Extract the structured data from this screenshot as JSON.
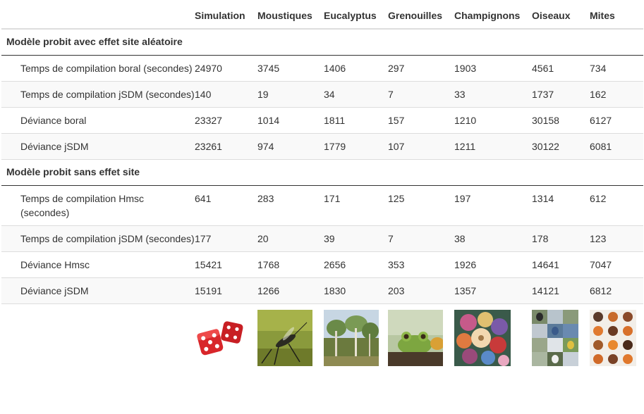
{
  "table": {
    "headers": [
      "",
      "Simulation",
      "Moustiques",
      "Eucalyptus",
      "Grenouilles",
      "Champignons",
      "Oiseaux",
      "Mites"
    ],
    "section1": {
      "title": "Modèle probit avec effet site aléatoire",
      "rows": [
        {
          "label": "Temps de compilation boral (secondes)",
          "values": [
            "24970",
            "3745",
            "1406",
            "297",
            "1903",
            "4561",
            "734"
          ]
        },
        {
          "label": "Temps de compilation jSDM (secondes)",
          "values": [
            "140",
            "19",
            "34",
            "7",
            "33",
            "1737",
            "162"
          ]
        },
        {
          "label": "Déviance boral",
          "values": [
            "23327",
            "1014",
            "1811",
            "157",
            "1210",
            "30158",
            "6127"
          ]
        },
        {
          "label": "Déviance jSDM",
          "values": [
            "23261",
            "974",
            "1779",
            "107",
            "1211",
            "30122",
            "6081"
          ]
        }
      ]
    },
    "section2": {
      "title": "Modèle probit sans effet site",
      "rows": [
        {
          "label": "Temps de compilation Hmsc (secondes)",
          "values": [
            "641",
            "283",
            "171",
            "125",
            "197",
            "1314",
            "612"
          ]
        },
        {
          "label": "Temps de compilation jSDM (secondes)",
          "values": [
            "177",
            "20",
            "39",
            "7",
            "38",
            "178",
            "123"
          ]
        },
        {
          "label": "Déviance Hmsc",
          "values": [
            "15421",
            "1768",
            "2656",
            "353",
            "1926",
            "14641",
            "7047"
          ]
        },
        {
          "label": "Déviance jSDM",
          "values": [
            "15191",
            "1266",
            "1830",
            "203",
            "1357",
            "14121",
            "6812"
          ]
        }
      ]
    },
    "images": [
      "dice-image",
      "mosquito-image",
      "eucalyptus-image",
      "frog-image",
      "mushrooms-image",
      "birds-image",
      "mites-image"
    ]
  }
}
